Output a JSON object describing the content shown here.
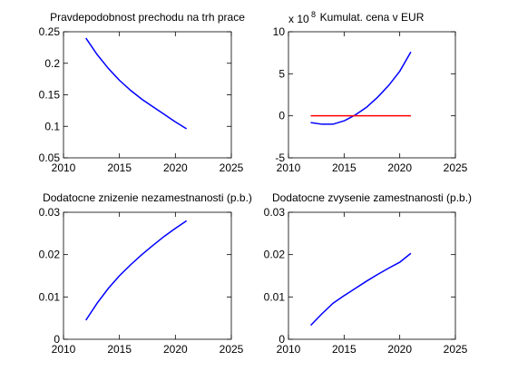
{
  "chart_data": [
    {
      "type": "line",
      "title": "Pravdepodobnost prechodu na trh prace",
      "x": [
        2012,
        2013,
        2014,
        2015,
        2016,
        2017,
        2018,
        2019,
        2020,
        2021
      ],
      "series": [
        {
          "color": "#0000ff",
          "values": [
            0.24,
            0.214,
            0.192,
            0.173,
            0.157,
            0.143,
            0.131,
            0.119,
            0.107,
            0.096
          ]
        }
      ],
      "xlim": [
        2010,
        2025
      ],
      "xticks": [
        2010,
        2015,
        2020,
        2025
      ],
      "ylim": [
        0.05,
        0.25
      ],
      "yticks": [
        0.05,
        0.1,
        0.15,
        0.2,
        0.25
      ]
    },
    {
      "type": "line",
      "title": "Kumulat. cena v EUR",
      "y_multiplier": {
        "base": "x 10",
        "exponent": "8"
      },
      "x": [
        2012,
        2013,
        2014,
        2015,
        2016,
        2017,
        2018,
        2019,
        2020,
        2021
      ],
      "series": [
        {
          "color": "#0000ff",
          "values": [
            -0.8,
            -1.0,
            -1.0,
            -0.6,
            0.1,
            1.0,
            2.2,
            3.6,
            5.3,
            7.6
          ]
        },
        {
          "color": "#ff0000",
          "values": [
            0,
            0,
            0,
            0,
            0,
            0,
            0,
            0,
            0,
            0
          ]
        }
      ],
      "xlim": [
        2010,
        2025
      ],
      "xticks": [
        2010,
        2015,
        2020,
        2025
      ],
      "ylim": [
        -5,
        10
      ],
      "yticks": [
        -5,
        0,
        5,
        10
      ]
    },
    {
      "type": "line",
      "title": "Dodatocne znizenie nezamestnanosti (p.b.)",
      "x": [
        2012,
        2013,
        2014,
        2015,
        2016,
        2017,
        2018,
        2019,
        2020,
        2021
      ],
      "series": [
        {
          "color": "#0000ff",
          "values": [
            0.0045,
            0.0085,
            0.012,
            0.015,
            0.0176,
            0.02,
            0.0222,
            0.0243,
            0.0262,
            0.028
          ]
        }
      ],
      "xlim": [
        2010,
        2025
      ],
      "xticks": [
        2010,
        2015,
        2020,
        2025
      ],
      "ylim": [
        0,
        0.03
      ],
      "yticks": [
        0,
        0.01,
        0.02,
        0.03
      ]
    },
    {
      "type": "line",
      "title": "Dodatocne zvysenie zamestnanosti (p.b.)",
      "x": [
        2012,
        2013,
        2014,
        2015,
        2016,
        2017,
        2018,
        2019,
        2020,
        2021
      ],
      "series": [
        {
          "color": "#0000ff",
          "values": [
            0.0033,
            0.006,
            0.0085,
            0.0103,
            0.012,
            0.0137,
            0.0153,
            0.0168,
            0.0182,
            0.0203
          ]
        }
      ],
      "xlim": [
        2010,
        2025
      ],
      "xticks": [
        2010,
        2015,
        2020,
        2025
      ],
      "ylim": [
        0,
        0.03
      ],
      "yticks": [
        0,
        0.01,
        0.02,
        0.03
      ]
    }
  ]
}
